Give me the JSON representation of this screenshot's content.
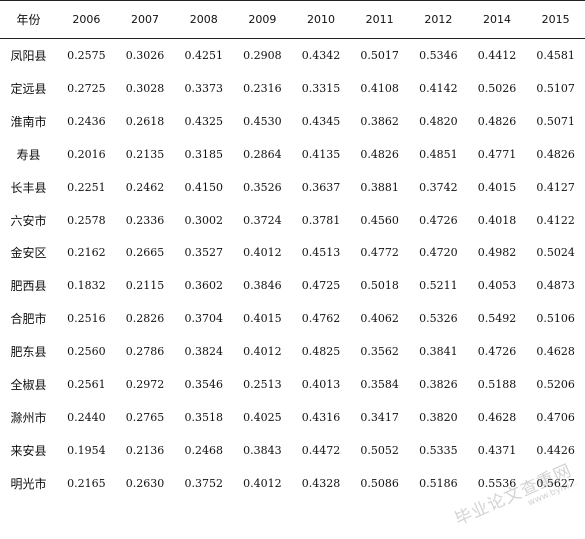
{
  "table": {
    "corner_label": "年份",
    "years": [
      "2006",
      "2007",
      "2008",
      "2009",
      "2010",
      "2011",
      "2012",
      "2014",
      "2015"
    ],
    "rows": [
      {
        "label": "凤阳县",
        "values": [
          "0.2575",
          "0.3026",
          "0.4251",
          "0.2908",
          "0.4342",
          "0.5017",
          "0.5346",
          "0.4412",
          "0.4581"
        ]
      },
      {
        "label": "定远县",
        "values": [
          "0.2725",
          "0.3028",
          "0.3373",
          "0.2316",
          "0.3315",
          "0.4108",
          "0.4142",
          "0.5026",
          "0.5107"
        ]
      },
      {
        "label": "淮南市",
        "values": [
          "0.2436",
          "0.2618",
          "0.4325",
          "0.4530",
          "0.4345",
          "0.3862",
          "0.4820",
          "0.4826",
          "0.5071"
        ]
      },
      {
        "label": "寿县",
        "values": [
          "0.2016",
          "0.2135",
          "0.3185",
          "0.2864",
          "0.4135",
          "0.4826",
          "0.4851",
          "0.4771",
          "0.4826"
        ]
      },
      {
        "label": "长丰县",
        "values": [
          "0.2251",
          "0.2462",
          "0.4150",
          "0.3526",
          "0.3637",
          "0.3881",
          "0.3742",
          "0.4015",
          "0.4127"
        ]
      },
      {
        "label": "六安市",
        "values": [
          "0.2578",
          "0.2336",
          "0.3002",
          "0.3724",
          "0.3781",
          "0.4560",
          "0.4726",
          "0.4018",
          "0.4122"
        ]
      },
      {
        "label": "金安区",
        "values": [
          "0.2162",
          "0.2665",
          "0.3527",
          "0.4012",
          "0.4513",
          "0.4772",
          "0.4720",
          "0.4982",
          "0.5024"
        ]
      },
      {
        "label": "肥西县",
        "values": [
          "0.1832",
          "0.2115",
          "0.3602",
          "0.3846",
          "0.4725",
          "0.5018",
          "0.5211",
          "0.4053",
          "0.4873"
        ]
      },
      {
        "label": "合肥市",
        "values": [
          "0.2516",
          "0.2826",
          "0.3704",
          "0.4015",
          "0.4762",
          "0.4062",
          "0.5326",
          "0.5492",
          "0.5106"
        ]
      },
      {
        "label": "肥东县",
        "values": [
          "0.2560",
          "0.2786",
          "0.3824",
          "0.4012",
          "0.4825",
          "0.3562",
          "0.3841",
          "0.4726",
          "0.4628"
        ]
      },
      {
        "label": "全椒县",
        "values": [
          "0.2561",
          "0.2972",
          "0.3546",
          "0.2513",
          "0.4013",
          "0.3584",
          "0.3826",
          "0.5188",
          "0.5206"
        ]
      },
      {
        "label": "滁州市",
        "values": [
          "0.2440",
          "0.2765",
          "0.3518",
          "0.4025",
          "0.4316",
          "0.3417",
          "0.3820",
          "0.4628",
          "0.4706"
        ]
      },
      {
        "label": "来安县",
        "values": [
          "0.1954",
          "0.2136",
          "0.2468",
          "0.3843",
          "0.4472",
          "0.5052",
          "0.5335",
          "0.4371",
          "0.4426"
        ]
      },
      {
        "label": "明光市",
        "values": [
          "0.2165",
          "0.2630",
          "0.3752",
          "0.4012",
          "0.4328",
          "0.5086",
          "0.5186",
          "0.5536",
          "0.5627"
        ]
      }
    ]
  },
  "watermark": {
    "text": "毕业论文查重网",
    "subtext": "www.bylw..."
  }
}
